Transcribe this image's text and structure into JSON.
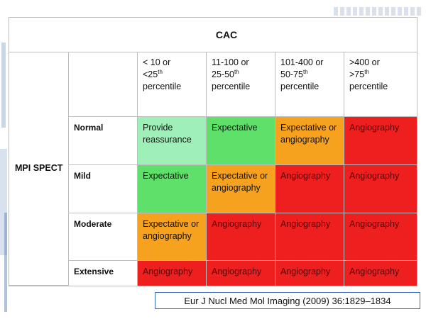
{
  "table": {
    "top_header": "CAC",
    "side_header": "MPI SPECT",
    "columns": [
      {
        "line1": "< 10 or",
        "line2_pre": "<25",
        "line2_sup": "th",
        "line2_post": " percentile",
        "line3": ""
      },
      {
        "line1": "11-100 or",
        "line2_pre": "25-50",
        "line2_sup": "th",
        "line2_post": "",
        "line3": "percentile"
      },
      {
        "line1": "101-400 or",
        "line2_pre": "50-75",
        "line2_sup": "th",
        "line2_post": "",
        "line3": "percentile"
      },
      {
        "line1": ">400 or",
        "line2_pre": ">75",
        "line2_sup": "th",
        "line2_post": "",
        "line3": "percentile"
      }
    ],
    "rows": [
      {
        "label": "Normal",
        "cells": [
          "Provide reassurance",
          "Expectative",
          "Expectative or angiography",
          "Angiography"
        ]
      },
      {
        "label": "Mild",
        "cells": [
          "Expectative",
          "Expectative or angiography",
          "Angiography",
          "Angiography"
        ]
      },
      {
        "label": "Moderate",
        "cells": [
          "Expectative  or angiography",
          "Angiography",
          "Angiography",
          "Angiography"
        ]
      },
      {
        "label": "Extensive",
        "cells": [
          "Angiography",
          "Angiography",
          "Angiography",
          "Angiography"
        ]
      }
    ],
    "colors": {
      "provide_reassurance": "#9ff0b8",
      "expectative": "#5fe06a",
      "expectative_or_angiography": "#f7a21f",
      "angiography": "#ee1f1f"
    }
  },
  "citation": "Eur J Nucl Med Mol Imaging (2009) 36:1829–1834"
}
